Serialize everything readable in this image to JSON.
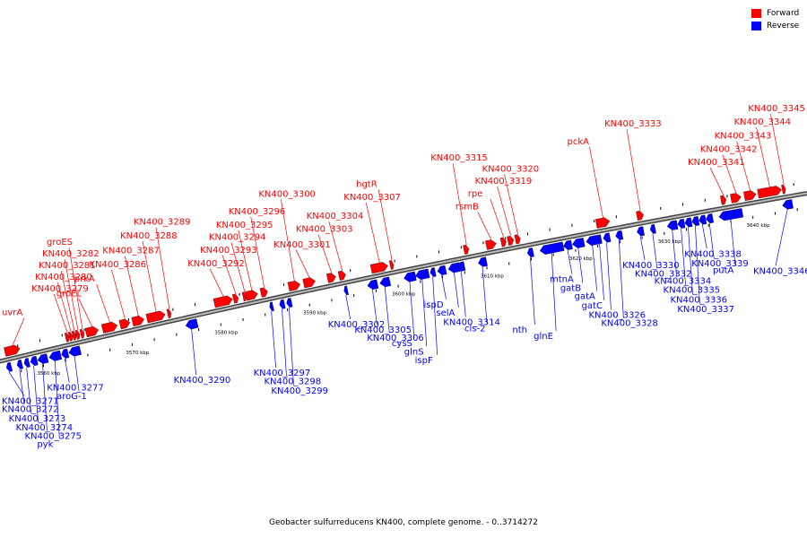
{
  "legend": {
    "forward_label": "Forward",
    "reverse_label": "Reverse",
    "forward_color": "#ff0000",
    "reverse_color": "#0000ff"
  },
  "caption": "Geobacter sulfurreducens KN400, complete genome. - 0..3714272",
  "map": {
    "start_kbp": 3555,
    "end_kbp": 3646,
    "ticks": [
      "3560 kbp",
      "3570 kbp",
      "3580 kbp",
      "3590 kbp",
      "3600 kbp",
      "3610 kbp",
      "3620 kbp",
      "3630 kbp",
      "3640 kbp"
    ],
    "tick_kbp": [
      3560,
      3570,
      3580,
      3590,
      3600,
      3610,
      3620,
      3630,
      3640
    ],
    "forward_genes": [
      {
        "label": "uvrA",
        "kbp": 3556.4,
        "len": 1.8
      },
      {
        "label": "KN400_3279",
        "kbp": 3562.6,
        "len": 0.3
      },
      {
        "label": "KN400_3280",
        "kbp": 3563.0,
        "len": 0.3
      },
      {
        "label": "KN400_3281",
        "kbp": 3563.4,
        "len": 0.3
      },
      {
        "label": "KN400_3282",
        "kbp": 3563.8,
        "len": 0.3
      },
      {
        "label": "groES",
        "kbp": 3564.3,
        "len": 0.3
      },
      {
        "label": "groEL",
        "kbp": 3565.4,
        "len": 1.5
      },
      {
        "label": "prkA",
        "kbp": 3567.4,
        "len": 1.8
      },
      {
        "label": "KN400_3286",
        "kbp": 3569.1,
        "len": 1.2
      },
      {
        "label": "KN400_3287",
        "kbp": 3570.6,
        "len": 1.4
      },
      {
        "label": "KN400_3288",
        "kbp": 3572.6,
        "len": 2.2
      },
      {
        "label": "KN400_3289",
        "kbp": 3574.1,
        "len": 0.4
      },
      {
        "label": "KN400_3292",
        "kbp": 3580.2,
        "len": 2.2
      },
      {
        "label": "KN400_3293",
        "kbp": 3581.6,
        "len": 0.6
      },
      {
        "label": "KN400_3294",
        "kbp": 3582.6,
        "len": 0.4
      },
      {
        "label": "KN400_3295",
        "kbp": 3583.4,
        "len": 1.4
      },
      {
        "label": "KN400_3296",
        "kbp": 3584.8,
        "len": 0.8
      },
      {
        "label": "KN400_3300",
        "kbp": 3588.2,
        "len": 1.4
      },
      {
        "label": "KN400_3301",
        "kbp": 3589.9,
        "len": 1.4
      },
      {
        "label": "KN400_3303",
        "kbp": 3592.4,
        "len": 1.0
      },
      {
        "label": "KN400_3304",
        "kbp": 3593.6,
        "len": 0.8
      },
      {
        "label": "KN400_3307",
        "kbp": 3597.8,
        "len": 2.0
      },
      {
        "label": "hgtR",
        "kbp": 3599.2,
        "len": 0.4
      },
      {
        "label": "KN400_3315",
        "kbp": 3607.6,
        "len": 0.6
      },
      {
        "label": "rsmB",
        "kbp": 3610.4,
        "len": 1.2
      },
      {
        "label": "rpe",
        "kbp": 3611.8,
        "len": 0.6
      },
      {
        "label": "KN400_3319",
        "kbp": 3612.6,
        "len": 0.7
      },
      {
        "label": "KN400_3320",
        "kbp": 3613.4,
        "len": 0.6
      },
      {
        "label": "pckA",
        "kbp": 3623.0,
        "len": 1.6
      },
      {
        "label": "KN400_3333",
        "kbp": 3627.2,
        "len": 0.8
      },
      {
        "label": "KN400_3341",
        "kbp": 3636.6,
        "len": 0.6
      },
      {
        "label": "KN400_3342",
        "kbp": 3638.0,
        "len": 1.2
      },
      {
        "label": "KN400_3343",
        "kbp": 3639.6,
        "len": 1.4
      },
      {
        "label": "KN400_3344",
        "kbp": 3641.8,
        "len": 2.8
      },
      {
        "label": "KN400_3345",
        "kbp": 3643.4,
        "len": 0.4
      }
    ],
    "reverse_genes": [
      {
        "label": "KN400_3271",
        "kbp": 3556.0,
        "len": 0.6
      },
      {
        "label": "KN400_3272",
        "kbp": 3557.2,
        "len": 0.6
      },
      {
        "label": "KN400_3273",
        "kbp": 3558.0,
        "len": 0.6
      },
      {
        "label": "KN400_3274",
        "kbp": 3558.8,
        "len": 0.8
      },
      {
        "label": "KN400_3275",
        "kbp": 3559.8,
        "len": 1.2
      },
      {
        "label": "pyk",
        "kbp": 3561.2,
        "len": 1.4
      },
      {
        "label": "KN400_3277",
        "kbp": 3562.3,
        "len": 0.8
      },
      {
        "label": "aroG-1",
        "kbp": 3563.4,
        "len": 1.4
      },
      {
        "label": "KN400_3290",
        "kbp": 3576.6,
        "len": 1.4
      },
      {
        "label": "KN400_3297",
        "kbp": 3585.6,
        "len": 0.3
      },
      {
        "label": "KN400_3298",
        "kbp": 3586.8,
        "len": 0.6
      },
      {
        "label": "KN400_3299",
        "kbp": 3587.6,
        "len": 0.6
      },
      {
        "label": "KN400_3302",
        "kbp": 3594.0,
        "len": 0.4
      },
      {
        "label": "KN400_3305",
        "kbp": 3597.0,
        "len": 1.2
      },
      {
        "label": "KN400_3306",
        "kbp": 3598.4,
        "len": 1.2
      },
      {
        "label": "cysS",
        "kbp": 3601.2,
        "len": 1.4
      },
      {
        "label": "glnS",
        "kbp": 3602.6,
        "len": 1.6
      },
      {
        "label": "ispF",
        "kbp": 3603.8,
        "len": 0.6
      },
      {
        "label": "ispD",
        "kbp": 3604.8,
        "len": 1.0
      },
      {
        "label": "selA",
        "kbp": 3606.2,
        "len": 1.4
      },
      {
        "label": "KN400_3314",
        "kbp": 3607.0,
        "len": 0.8
      },
      {
        "label": "cls-2",
        "kbp": 3609.4,
        "len": 1.0
      },
      {
        "label": "nth",
        "kbp": 3614.8,
        "len": 0.7
      },
      {
        "label": "glnE",
        "kbp": 3617.2,
        "len": 2.8
      },
      {
        "label": "mtnA",
        "kbp": 3619.0,
        "len": 1.0
      },
      {
        "label": "gatB",
        "kbp": 3620.2,
        "len": 1.4
      },
      {
        "label": "gatA",
        "kbp": 3621.8,
        "len": 1.5
      },
      {
        "label": "gatC",
        "kbp": 3622.6,
        "len": 0.4
      },
      {
        "label": "KN400_3326",
        "kbp": 3623.4,
        "len": 0.8
      },
      {
        "label": "KN400_3328",
        "kbp": 3624.8,
        "len": 0.8
      },
      {
        "label": "KN400_3330",
        "kbp": 3627.2,
        "len": 0.8
      },
      {
        "label": "KN400_3332",
        "kbp": 3628.6,
        "len": 0.6
      },
      {
        "label": "KN400_3334",
        "kbp": 3630.8,
        "len": 1.2
      },
      {
        "label": "KN400_3335",
        "kbp": 3631.8,
        "len": 0.8
      },
      {
        "label": "KN400_3336",
        "kbp": 3632.6,
        "len": 0.8
      },
      {
        "label": "KN400_3337",
        "kbp": 3633.4,
        "len": 0.8
      },
      {
        "label": "KN400_3338",
        "kbp": 3634.2,
        "len": 0.8
      },
      {
        "label": "KN400_3339",
        "kbp": 3635.0,
        "len": 0.8
      },
      {
        "label": "putA",
        "kbp": 3637.4,
        "len": 2.8
      },
      {
        "label": "KN400_3346",
        "kbp": 3643.8,
        "len": 1.2
      }
    ]
  }
}
